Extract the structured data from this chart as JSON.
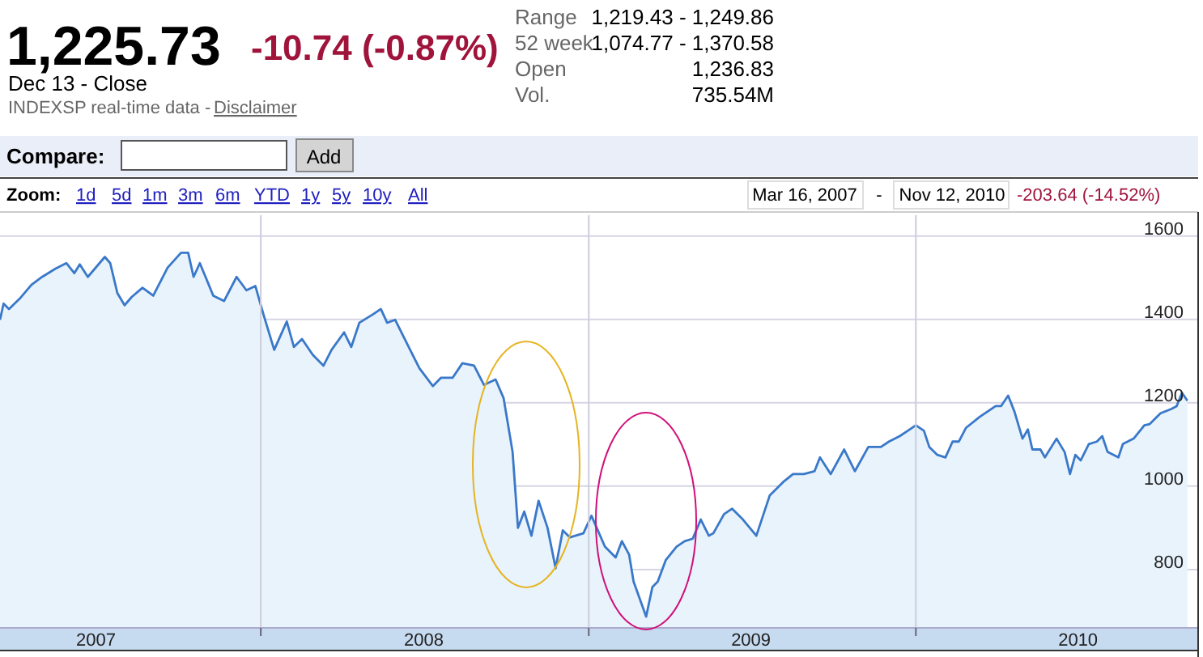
{
  "chart_data": {
    "type": "area",
    "title": "1,225.73",
    "subtitle": "-10.74 (-0.87%)",
    "annotations": [
      "Dec 13 - Close",
      "INDEXSP real-time data -",
      "Disclaimer",
      "Range",
      "1,219.43 - 1,249.86",
      "52 week",
      "1,074.77 - 1,370.58",
      "Open",
      "1,236.83",
      "Vol.",
      "735.54M",
      "Compare:",
      "Add",
      "Zoom:",
      "1d",
      "5d",
      "1m",
      "3m",
      "6m",
      "YTD",
      "1y",
      "5y",
      "10y",
      "All",
      "Mar 16, 2007",
      "-",
      "Nov 12, 2010",
      "-203.64 (-14.52%)"
    ],
    "x": [
      "2007-03-16",
      "2007-03-20",
      "2007-03-26",
      "2007-04-07",
      "2007-04-20",
      "2007-05-02",
      "2007-05-17",
      "2007-05-29",
      "2007-06-07",
      "2007-06-13",
      "2007-06-22",
      "2007-07-11",
      "2007-07-17",
      "2007-07-25",
      "2007-08-02",
      "2007-08-10",
      "2007-08-22",
      "2007-09-03",
      "2007-09-19",
      "2007-10-04",
      "2007-10-12",
      "2007-10-18",
      "2007-10-25",
      "2007-11-09",
      "2007-11-21",
      "2007-12-05",
      "2007-12-16",
      "2007-12-26",
      "2008-01-04",
      "2008-01-16",
      "2008-01-30",
      "2008-02-07",
      "2008-02-16",
      "2008-02-28",
      "2008-03-11",
      "2008-03-20",
      "2008-04-03",
      "2008-04-11",
      "2008-04-20",
      "2008-05-05",
      "2008-05-14",
      "2008-05-21",
      "2008-05-30",
      "2008-06-08",
      "2008-06-26",
      "2008-07-11",
      "2008-07-20",
      "2008-08-02",
      "2008-08-13",
      "2008-08-26",
      "2008-09-06",
      "2008-09-19",
      "2008-09-28",
      "2008-10-08",
      "2008-10-14",
      "2008-10-21",
      "2008-10-29",
      "2008-11-06",
      "2008-11-16",
      "2008-11-25",
      "2008-12-03",
      "2008-12-11",
      "2008-12-26",
      "2009-01-04",
      "2009-01-19",
      "2009-01-31",
      "2009-02-07",
      "2009-02-15",
      "2009-02-20",
      "2009-03-06",
      "2009-03-13",
      "2009-03-19",
      "2009-03-28",
      "2009-04-09",
      "2009-04-18",
      "2009-04-27",
      "2009-05-06",
      "2009-05-15",
      "2009-05-20",
      "2009-06-01",
      "2009-06-10",
      "2009-06-22",
      "2009-07-07",
      "2009-07-22",
      "2009-08-06",
      "2009-08-17",
      "2009-08-29",
      "2009-09-10",
      "2009-09-16",
      "2009-09-28",
      "2009-10-13",
      "2009-10-25",
      "2009-11-09",
      "2009-11-23",
      "2009-12-02",
      "2009-12-14",
      "2009-12-23",
      "2010-01-01",
      "2010-01-10",
      "2010-01-16",
      "2010-01-25",
      "2010-02-03",
      "2010-02-11",
      "2010-02-18",
      "2010-02-26",
      "2010-03-13",
      "2010-03-31",
      "2010-04-06",
      "2010-04-14",
      "2010-04-21",
      "2010-04-30",
      "2010-05-06",
      "2010-05-11",
      "2010-05-20",
      "2010-05-25",
      "2010-06-07",
      "2010-06-16",
      "2010-06-22",
      "2010-06-28",
      "2010-07-04",
      "2010-07-13",
      "2010-07-22",
      "2010-07-28",
      "2010-08-03",
      "2010-08-15",
      "2010-08-20",
      "2010-09-01",
      "2010-09-13",
      "2010-09-19",
      "2010-10-01",
      "2010-10-13",
      "2010-10-19",
      "2010-10-25",
      "2010-10-31"
    ],
    "series": [
      {
        "color": "#3a78c9",
        "values": [
          1399,
          1438,
          1425,
          1450,
          1483,
          1502,
          1522,
          1535,
          1511,
          1532,
          1502,
          1550,
          1535,
          1463,
          1434,
          1454,
          1476,
          1457,
          1524,
          1560,
          1560,
          1502,
          1535,
          1457,
          1444,
          1502,
          1470,
          1480,
          1412,
          1327,
          1395,
          1334,
          1353,
          1315,
          1289,
          1327,
          1369,
          1334,
          1392,
          1412,
          1425,
          1392,
          1399,
          1360,
          1283,
          1240,
          1260,
          1260,
          1295,
          1289,
          1243,
          1256,
          1211,
          1082,
          900,
          939,
          881,
          965,
          900,
          803,
          894,
          877,
          887,
          929,
          855,
          829,
          868,
          836,
          771,
          687,
          758,
          771,
          823,
          855,
          868,
          874,
          920,
          881,
          887,
          933,
          946,
          920,
          881,
          978,
          1010,
          1029,
          1029,
          1036,
          1069,
          1029,
          1088,
          1036,
          1094,
          1094,
          1107,
          1120,
          1133,
          1146,
          1133,
          1094,
          1075,
          1069,
          1107,
          1107,
          1140,
          1166,
          1192,
          1192,
          1217,
          1179,
          1114,
          1136,
          1088,
          1088,
          1069,
          1114,
          1082,
          1029,
          1075,
          1062,
          1101,
          1107,
          1120,
          1082,
          1069,
          1101,
          1114,
          1146,
          1149,
          1175,
          1185,
          1192,
          1224,
          1205
        ]
      }
    ],
    "xlim": [
      "2007-03-16",
      "2010-11-12"
    ],
    "xticks": [
      {
        "value": "2007-07-01",
        "label": "2007"
      },
      {
        "value": "2008-01-01",
        "label": null
      },
      {
        "value": "2008-07-01",
        "label": "2008"
      },
      {
        "value": "2009-01-01",
        "label": null
      },
      {
        "value": "2009-07-01",
        "label": "2009"
      },
      {
        "value": "2010-01-01",
        "label": null
      },
      {
        "value": "2010-07-01",
        "label": "2010"
      }
    ],
    "ylim": [
      660,
      1650
    ],
    "yticks": [
      800,
      1000,
      1200,
      1400,
      1600
    ],
    "grid": true
  }
}
